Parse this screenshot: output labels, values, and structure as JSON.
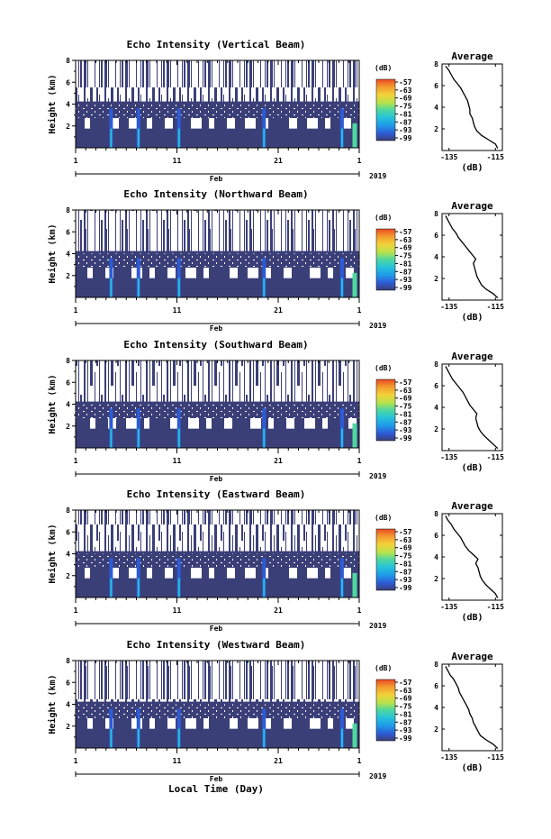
{
  "figure": {
    "bottom_xlabel": "Local Time (Day)",
    "colors": {
      "background_echo": "#3b3f78",
      "colorbar": [
        "#3b3f78",
        "#2d5bd6",
        "#1f9be8",
        "#27c3d9",
        "#4fd7a0",
        "#b9e34a",
        "#f3d13a",
        "#f39a2d",
        "#ea4a24"
      ]
    }
  },
  "chart_data": [
    {
      "type": "heatmap",
      "title": "Echo Intensity (Vertical Beam)",
      "ylabel": "Height (km)",
      "ylim": [
        0,
        8
      ],
      "yticks": [
        "8",
        "6",
        "4",
        "2"
      ],
      "xticks": [
        "1",
        "11",
        "21",
        "1"
      ],
      "month_label": "Feb",
      "year_label": "2019",
      "colorbar": {
        "unit": "(dB)",
        "ticks": [
          "-57",
          "-63",
          "-69",
          "-75",
          "-81",
          "-87",
          "-93",
          "-99"
        ]
      },
      "average_profile": {
        "title": "Average",
        "xlabel": "(dB)",
        "xticks": [
          "-135",
          "-115"
        ],
        "xlim": [
          -138,
          -112
        ],
        "yticks": [
          "8",
          "6",
          "4",
          "2"
        ],
        "heights": [
          0.2,
          0.6,
          1.0,
          1.4,
          1.8,
          2.2,
          2.6,
          3.0,
          3.4,
          3.8,
          4.2,
          4.6,
          5.0,
          5.4,
          5.8,
          6.2,
          6.6,
          7.0,
          7.4,
          7.8
        ],
        "values": [
          -114,
          -115,
          -118,
          -121,
          -123,
          -124,
          -124.5,
          -125,
          -126,
          -126,
          -126.5,
          -127,
          -128,
          -129,
          -130,
          -131.5,
          -133,
          -134,
          -135,
          -136.5
        ]
      }
    },
    {
      "type": "heatmap",
      "title": "Echo Intensity (Northward Beam)",
      "ylabel": "Height (km)",
      "ylim": [
        0,
        8
      ],
      "yticks": [
        "8",
        "6",
        "4",
        "2"
      ],
      "xticks": [
        "1",
        "11",
        "21",
        "1"
      ],
      "month_label": "Feb",
      "year_label": "2019",
      "colorbar": {
        "unit": "(dB)",
        "ticks": [
          "-57",
          "-63",
          "-69",
          "-75",
          "-81",
          "-87",
          "-93",
          "-99"
        ]
      },
      "average_profile": {
        "title": "Average",
        "xlabel": "(dB)",
        "xticks": [
          "-135",
          "-115"
        ],
        "xlim": [
          -138,
          -112
        ],
        "yticks": [
          "8",
          "6",
          "4",
          "2"
        ],
        "heights": [
          0.2,
          0.6,
          1.0,
          1.4,
          1.8,
          2.2,
          2.6,
          3.0,
          3.4,
          3.8,
          4.2,
          4.6,
          5.0,
          5.4,
          5.8,
          6.2,
          6.6,
          7.0,
          7.4,
          7.8
        ],
        "values": [
          -114,
          -116,
          -119,
          -121,
          -122,
          -123,
          -123.5,
          -124,
          -124.5,
          -123.5,
          -125,
          -126.5,
          -128,
          -129.5,
          -131,
          -132,
          -133.5,
          -134.5,
          -135.5,
          -136.5
        ]
      }
    },
    {
      "type": "heatmap",
      "title": "Echo Intensity (Southward Beam)",
      "ylabel": "Height (km)",
      "ylim": [
        0,
        8
      ],
      "yticks": [
        "8",
        "6",
        "4",
        "2"
      ],
      "xticks": [
        "1",
        "11",
        "21",
        "1"
      ],
      "month_label": "Feb",
      "year_label": "2019",
      "colorbar": {
        "unit": "(dB)",
        "ticks": [
          "-57",
          "-63",
          "-69",
          "-75",
          "-81",
          "-87",
          "-93",
          "-99"
        ]
      },
      "average_profile": {
        "title": "Average",
        "xlabel": "(dB)",
        "xticks": [
          "-135",
          "-115"
        ],
        "xlim": [
          -138,
          -112
        ],
        "yticks": [
          "8",
          "6",
          "4",
          "2"
        ],
        "heights": [
          0.2,
          0.6,
          1.0,
          1.4,
          1.8,
          2.2,
          2.6,
          3.0,
          3.4,
          3.8,
          4.2,
          4.6,
          5.0,
          5.4,
          5.8,
          6.2,
          6.6,
          7.0,
          7.4,
          7.8
        ],
        "values": [
          -114,
          -116,
          -118,
          -120,
          -121.5,
          -122.5,
          -123,
          -123.5,
          -123,
          -124.5,
          -126,
          -127,
          -128,
          -129,
          -130.5,
          -132,
          -133.5,
          -134.5,
          -135.5,
          -136.5
        ]
      }
    },
    {
      "type": "heatmap",
      "title": "Echo Intensity (Eastward Beam)",
      "ylabel": "Height (km)",
      "ylim": [
        0,
        8
      ],
      "yticks": [
        "8",
        "6",
        "4",
        "2"
      ],
      "xticks": [
        "1",
        "11",
        "21",
        "1"
      ],
      "month_label": "Feb",
      "year_label": "2019",
      "colorbar": {
        "unit": "(dB)",
        "ticks": [
          "-57",
          "-63",
          "-69",
          "-75",
          "-81",
          "-87",
          "-93",
          "-99"
        ]
      },
      "average_profile": {
        "title": "Average",
        "xlabel": "(dB)",
        "xticks": [
          "-135",
          "-115"
        ],
        "xlim": [
          -138,
          -112
        ],
        "yticks": [
          "8",
          "6",
          "4",
          "2"
        ],
        "heights": [
          0.2,
          0.6,
          1.0,
          1.4,
          1.8,
          2.2,
          2.6,
          3.0,
          3.4,
          3.8,
          4.2,
          4.6,
          5.0,
          5.4,
          5.8,
          6.2,
          6.6,
          7.0,
          7.4,
          7.8
        ],
        "values": [
          -114,
          -115,
          -117,
          -119,
          -120.5,
          -121.5,
          -122,
          -122.5,
          -123.5,
          -122.5,
          -124.5,
          -126.5,
          -128,
          -129,
          -130,
          -131.5,
          -133,
          -134,
          -135.5,
          -136.5
        ]
      }
    },
    {
      "type": "heatmap",
      "title": "Echo Intensity (Westward Beam)",
      "ylabel": "Height (km)",
      "ylim": [
        0,
        8
      ],
      "yticks": [
        "8",
        "6",
        "4",
        "2"
      ],
      "xticks": [
        "1",
        "11",
        "21",
        "1"
      ],
      "month_label": "Feb",
      "year_label": "2019",
      "colorbar": {
        "unit": "(dB)",
        "ticks": [
          "-57",
          "-63",
          "-69",
          "-75",
          "-81",
          "-87",
          "-93",
          "-99"
        ]
      },
      "average_profile": {
        "title": "Average",
        "xlabel": "(dB)",
        "xticks": [
          "-135",
          "-115"
        ],
        "xlim": [
          -138,
          -112
        ],
        "yticks": [
          "8",
          "6",
          "4",
          "2"
        ],
        "heights": [
          0.2,
          0.6,
          1.0,
          1.4,
          1.8,
          2.2,
          2.6,
          3.0,
          3.4,
          3.8,
          4.2,
          4.6,
          5.0,
          5.4,
          5.8,
          6.2,
          6.6,
          7.0,
          7.4,
          7.8
        ],
        "values": [
          -114,
          -116,
          -119,
          -121.5,
          -122.5,
          -123.5,
          -124.5,
          -125,
          -126,
          -126.5,
          -127.5,
          -128.5,
          -129.5,
          -130.5,
          -131,
          -132,
          -133,
          -134.5,
          -135.5,
          -136.5
        ]
      }
    }
  ]
}
